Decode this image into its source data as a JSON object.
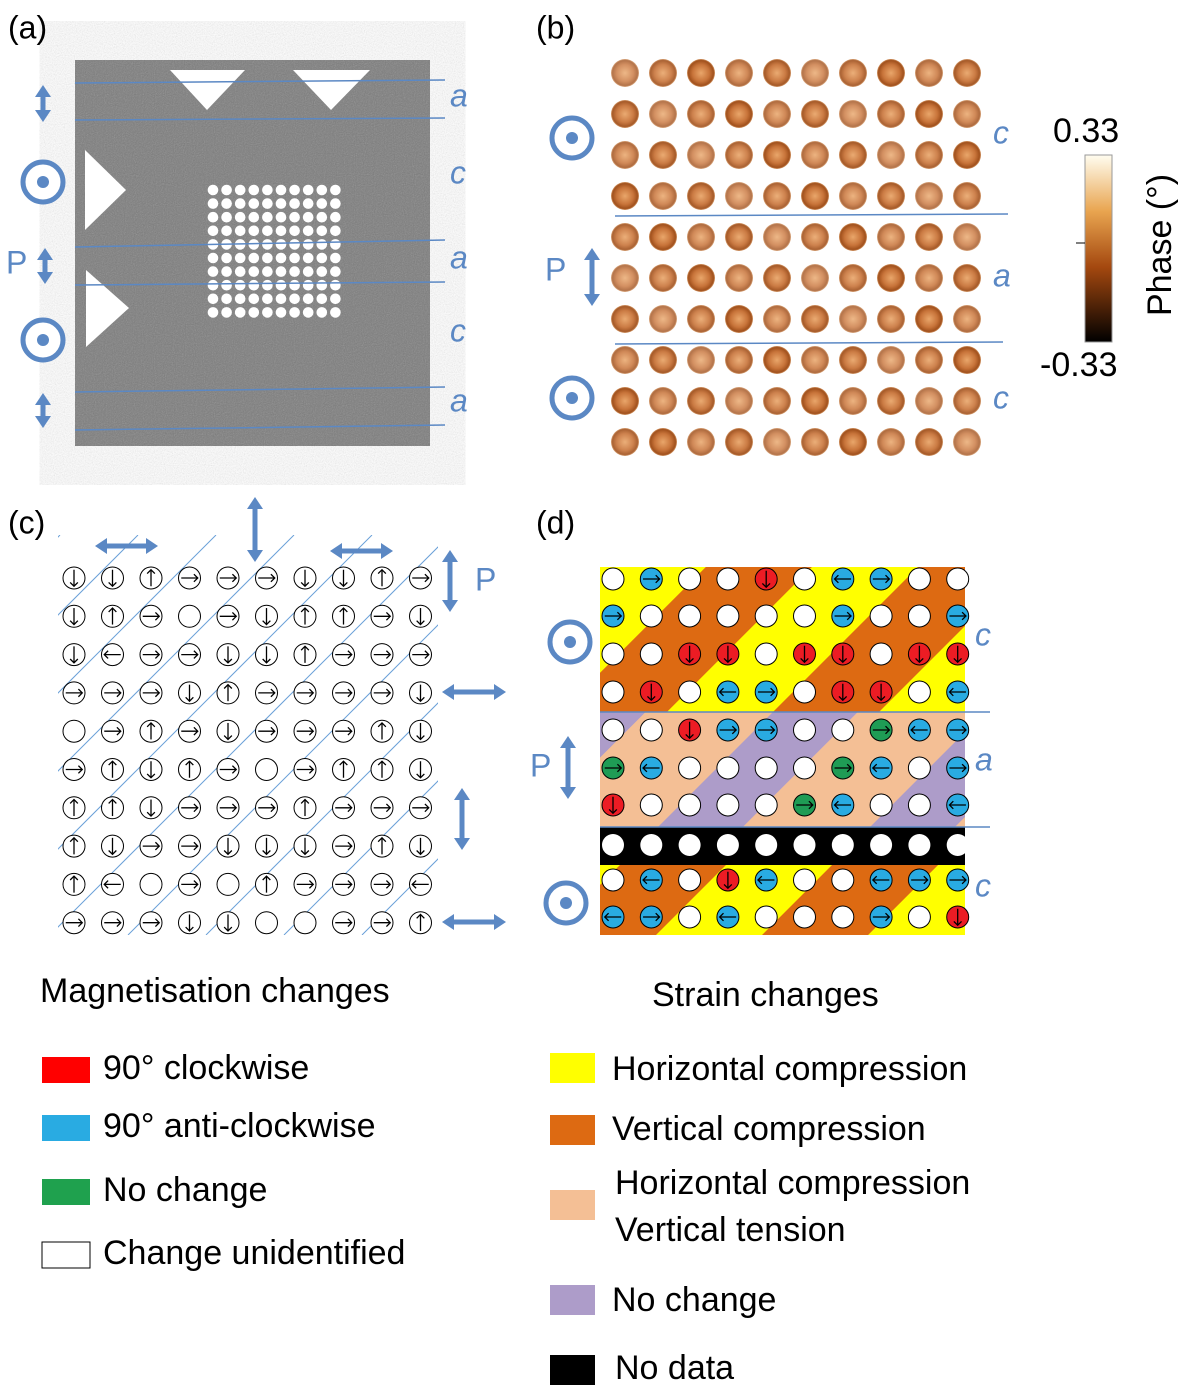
{
  "panels": [
    {
      "label": "(a)",
      "domain_labels": [
        "a",
        "c",
        "a",
        "c",
        "a"
      ],
      "polarization_label": "P"
    },
    {
      "label": "(b)",
      "domain_labels": [
        "c",
        "a",
        "c"
      ],
      "polarization_label": "P",
      "colorbar": {
        "max_label": "0.33",
        "min_label": "-0.33",
        "title": "Phase (°)"
      }
    },
    {
      "label": "(c)",
      "polarization_label": "P",
      "legend": {
        "title": "Magnetisation changes",
        "items": [
          "90° clockwise",
          "90° anti-clockwise",
          "No change",
          "Change unidentified"
        ]
      }
    },
    {
      "label": "(d)",
      "domain_labels": [
        "c",
        "a",
        "c"
      ],
      "polarization_label": "P",
      "legend": {
        "title": "Strain changes",
        "items": [
          "Horizontal compression",
          "Vertical compression",
          [
            "Horizontal compression",
            "Vertical tension"
          ],
          "No change",
          "No data"
        ]
      }
    }
  ]
}
